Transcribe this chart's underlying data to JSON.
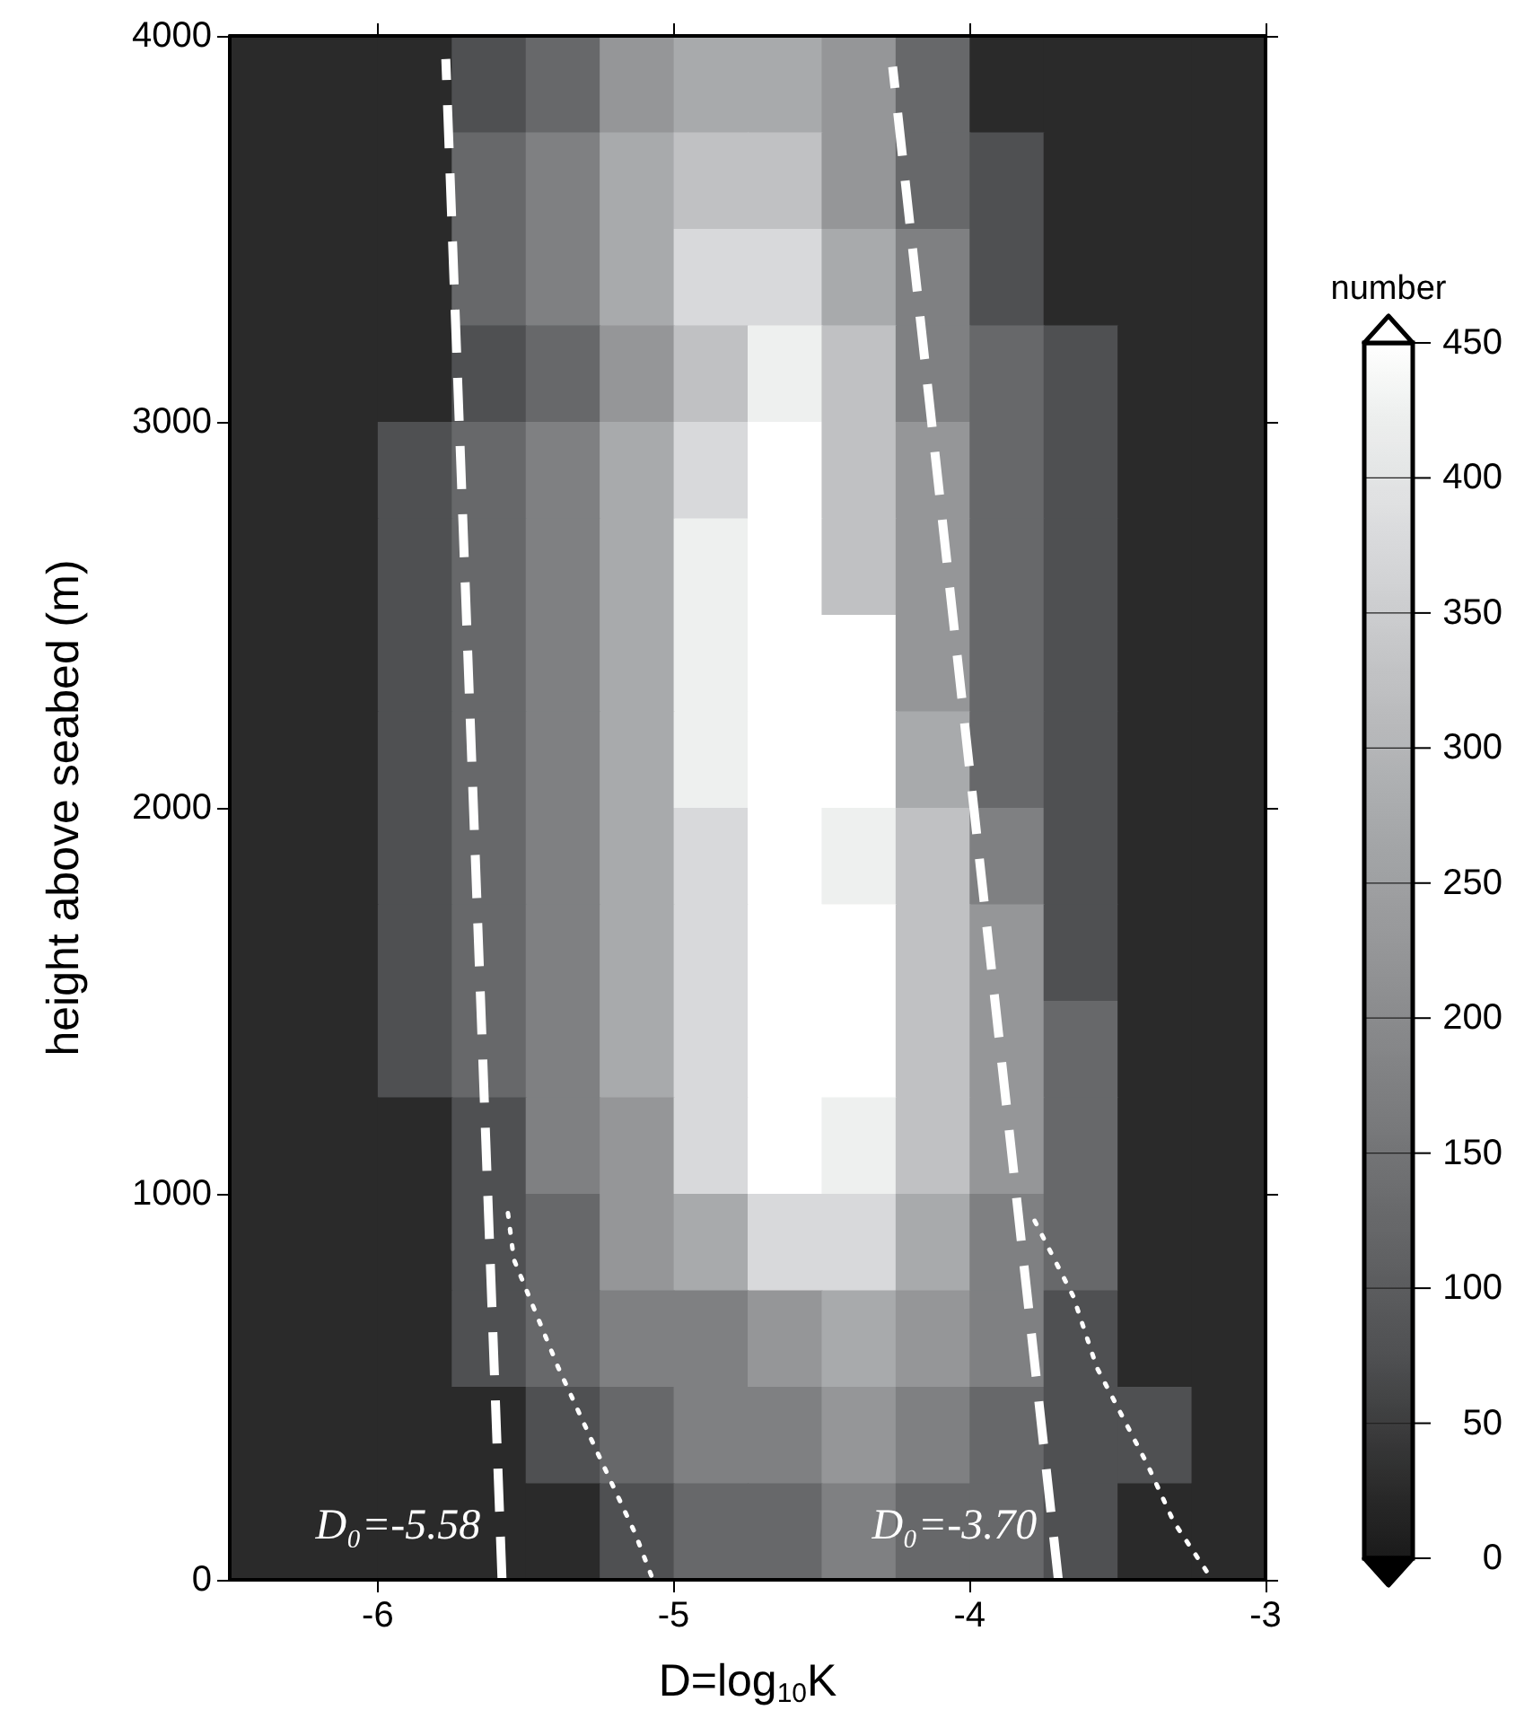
{
  "chart_data": {
    "type": "heatmap",
    "xlabel": "D=log$_{10}$K",
    "ylabel": "height above seabed (m)",
    "clabel": "number",
    "x": [
      -6.375,
      -6.125,
      -5.875,
      -5.625,
      -5.375,
      -5.125,
      -4.875,
      -4.625,
      -4.375,
      -4.125,
      -3.875,
      -3.625,
      -3.375,
      -3.125
    ],
    "y": [
      3875,
      3625,
      3375,
      3125,
      2875,
      2625,
      2375,
      2125,
      1875,
      1625,
      1375,
      1125,
      875,
      625,
      375,
      125
    ],
    "cells": [
      [
        25,
        25,
        25,
        75,
        125,
        225,
        275,
        275,
        225,
        125,
        25,
        25,
        25,
        25
      ],
      [
        25,
        25,
        25,
        125,
        175,
        275,
        325,
        325,
        225,
        125,
        75,
        25,
        25,
        25
      ],
      [
        25,
        25,
        25,
        125,
        175,
        275,
        375,
        375,
        275,
        175,
        75,
        25,
        25,
        25
      ],
      [
        25,
        25,
        25,
        75,
        125,
        225,
        325,
        425,
        325,
        175,
        125,
        75,
        25,
        25
      ],
      [
        25,
        25,
        75,
        125,
        175,
        275,
        375,
        450,
        325,
        225,
        125,
        75,
        25,
        25
      ],
      [
        25,
        25,
        75,
        125,
        175,
        275,
        425,
        450,
        325,
        225,
        125,
        75,
        25,
        25
      ],
      [
        25,
        25,
        75,
        125,
        175,
        275,
        425,
        450,
        450,
        225,
        125,
        75,
        25,
        25
      ],
      [
        25,
        25,
        75,
        125,
        175,
        275,
        425,
        450,
        450,
        275,
        125,
        75,
        25,
        25
      ],
      [
        25,
        25,
        75,
        125,
        175,
        275,
        375,
        450,
        425,
        325,
        175,
        75,
        25,
        25
      ],
      [
        25,
        25,
        75,
        125,
        175,
        275,
        375,
        450,
        450,
        325,
        225,
        75,
        25,
        25
      ],
      [
        25,
        25,
        75,
        125,
        175,
        275,
        375,
        450,
        450,
        325,
        225,
        125,
        25,
        25
      ],
      [
        25,
        25,
        25,
        75,
        175,
        225,
        375,
        450,
        425,
        325,
        225,
        125,
        25,
        25
      ],
      [
        25,
        25,
        25,
        75,
        125,
        225,
        275,
        375,
        375,
        275,
        175,
        125,
        25,
        25
      ],
      [
        25,
        25,
        25,
        75,
        125,
        175,
        175,
        225,
        275,
        225,
        175,
        75,
        25,
        25
      ],
      [
        25,
        25,
        25,
        25,
        75,
        125,
        175,
        175,
        225,
        175,
        125,
        75,
        75,
        25
      ],
      [
        25,
        25,
        25,
        25,
        25,
        75,
        125,
        125,
        175,
        125,
        125,
        75,
        25,
        25
      ]
    ],
    "clim": [
      0,
      450
    ],
    "cticks": [
      0,
      50,
      100,
      150,
      200,
      250,
      300,
      350,
      400,
      450
    ],
    "xlim": [
      -6.5,
      -3
    ],
    "xticks": [
      -6,
      -5,
      -4,
      -3
    ],
    "ylim": [
      0,
      4000
    ],
    "yticks": [
      0,
      1000,
      2000,
      3000,
      4000
    ],
    "marker": "none",
    "series": [
      {
        "type": "line",
        "color": "#ffffff",
        "line_style": "dashed",
        "x": [
          -5.58,
          -5.77
        ],
        "values": [
          0,
          3940
        ]
      },
      {
        "type": "line",
        "color": "#ffffff",
        "line_style": "dashed",
        "x": [
          -3.7,
          -4.26
        ],
        "values": [
          0,
          3920
        ]
      },
      {
        "type": "line",
        "color": "#ffffff",
        "line_style": "dotted",
        "x": [
          -5.56,
          -5.54,
          -5.39,
          -5.27,
          -5.13,
          -5.07
        ],
        "values": [
          950,
          830,
          550,
          350,
          120,
          0
        ]
      },
      {
        "type": "line",
        "color": "#ffffff",
        "line_style": "dotted",
        "x": [
          -3.78,
          -3.65,
          -3.57,
          -3.4,
          -3.31,
          -3.18
        ],
        "values": [
          930,
          735,
          550,
          300,
          150,
          0
        ]
      }
    ],
    "annotations": [
      "D₀=-5.58",
      "D₀=-3.70"
    ]
  }
}
